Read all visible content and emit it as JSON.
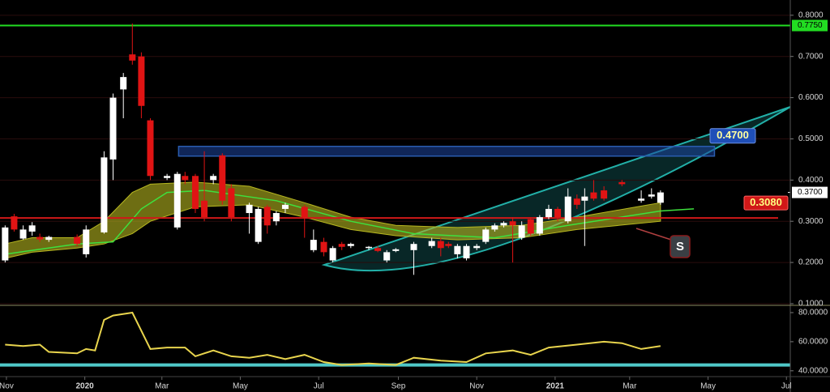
{
  "chart_data": [
    {
      "type": "candlestick",
      "xlim": [
        -5,
        610
      ],
      "ylim": [
        0.096,
        0.837
      ],
      "yticks": [
        {
          "value": 0.1,
          "label": "0.1000"
        },
        {
          "value": 0.2,
          "label": "0.2000"
        },
        {
          "value": 0.3,
          "label": "0.3000"
        },
        {
          "value": 0.4,
          "label": "0.4000"
        },
        {
          "value": 0.5,
          "label": "0.5000"
        },
        {
          "value": 0.6,
          "label": "0.6000"
        },
        {
          "value": 0.7,
          "label": "0.7000"
        },
        {
          "value": 0.8,
          "label": "0.8000"
        }
      ],
      "grid": true,
      "up_color": "#ffffff",
      "down_color": "#e01414",
      "x": [
        -1,
        6,
        13,
        20,
        26,
        33,
        55,
        62,
        76,
        83,
        91,
        98,
        105,
        112,
        125,
        133,
        139,
        147,
        154,
        161,
        168,
        175,
        189,
        196,
        203,
        210,
        217,
        232,
        239,
        247,
        254,
        261,
        268,
        282,
        289,
        296,
        303,
        317,
        331,
        338,
        344,
        351,
        358,
        366,
        373,
        380,
        387,
        394,
        401,
        408,
        415,
        422,
        429,
        437,
        444,
        450,
        457,
        465,
        479,
        494,
        502,
        509
      ],
      "open": [
        0.205,
        0.312,
        0.258,
        0.275,
        0.262,
        0.255,
        0.262,
        0.22,
        0.273,
        0.45,
        0.62,
        0.705,
        0.7,
        0.545,
        0.405,
        0.285,
        0.41,
        0.41,
        0.35,
        0.4,
        0.46,
        0.38,
        0.32,
        0.25,
        0.335,
        0.3,
        0.33,
        0.335,
        0.23,
        0.25,
        0.205,
        0.245,
        0.24,
        0.235,
        0.235,
        0.205,
        0.228,
        0.23,
        0.24,
        0.252,
        0.245,
        0.22,
        0.21,
        0.235,
        0.25,
        0.28,
        0.29,
        0.3,
        0.26,
        0.305,
        0.27,
        0.31,
        0.33,
        0.3,
        0.355,
        0.35,
        0.37,
        0.375,
        0.395,
        0.35,
        0.36,
        0.345
      ],
      "high": [
        0.29,
        0.318,
        0.29,
        0.298,
        0.27,
        0.265,
        0.268,
        0.29,
        0.47,
        0.61,
        0.66,
        0.78,
        0.71,
        0.55,
        0.415,
        0.42,
        0.42,
        0.415,
        0.47,
        0.415,
        0.465,
        0.39,
        0.345,
        0.335,
        0.34,
        0.325,
        0.345,
        0.34,
        0.28,
        0.26,
        0.24,
        0.25,
        0.248,
        0.24,
        0.24,
        0.23,
        0.235,
        0.25,
        0.26,
        0.26,
        0.25,
        0.245,
        0.245,
        0.245,
        0.285,
        0.295,
        0.3,
        0.31,
        0.3,
        0.31,
        0.315,
        0.34,
        0.335,
        0.38,
        0.365,
        0.38,
        0.4,
        0.385,
        0.4,
        0.375,
        0.38,
        0.375
      ],
      "low": [
        0.2,
        0.275,
        0.255,
        0.265,
        0.25,
        0.25,
        0.24,
        0.212,
        0.27,
        0.4,
        0.55,
        0.68,
        0.55,
        0.4,
        0.4,
        0.28,
        0.39,
        0.32,
        0.3,
        0.39,
        0.34,
        0.3,
        0.27,
        0.245,
        0.27,
        0.29,
        0.32,
        0.26,
        0.225,
        0.215,
        0.2,
        0.23,
        0.235,
        0.23,
        0.225,
        0.2,
        0.225,
        0.17,
        0.235,
        0.215,
        0.235,
        0.21,
        0.205,
        0.23,
        0.245,
        0.275,
        0.285,
        0.2,
        0.255,
        0.265,
        0.265,
        0.305,
        0.3,
        0.295,
        0.33,
        0.24,
        0.35,
        0.35,
        0.385,
        0.345,
        0.355,
        0.34
      ],
      "close": [
        0.285,
        0.28,
        0.28,
        0.29,
        0.256,
        0.262,
        0.245,
        0.28,
        0.455,
        0.6,
        0.65,
        0.69,
        0.58,
        0.41,
        0.41,
        0.415,
        0.4,
        0.33,
        0.31,
        0.41,
        0.35,
        0.31,
        0.34,
        0.33,
        0.29,
        0.32,
        0.34,
        0.31,
        0.255,
        0.225,
        0.235,
        0.238,
        0.245,
        0.238,
        0.228,
        0.225,
        0.232,
        0.245,
        0.252,
        0.235,
        0.24,
        0.24,
        0.24,
        0.24,
        0.28,
        0.29,
        0.296,
        0.29,
        0.29,
        0.27,
        0.31,
        0.33,
        0.31,
        0.36,
        0.34,
        0.36,
        0.355,
        0.355,
        0.39,
        0.355,
        0.365,
        0.37
      ],
      "ribbon": {
        "color": "#b8b820",
        "x": [
          -1,
          20,
          55,
          76,
          98,
          112,
          147,
          189,
          232,
          268,
          303,
          351,
          401,
          444,
          509
        ],
        "upper": [
          0.245,
          0.26,
          0.26,
          0.3,
          0.37,
          0.39,
          0.395,
          0.385,
          0.345,
          0.31,
          0.29,
          0.285,
          0.29,
          0.31,
          0.345
        ],
        "lower": [
          0.21,
          0.225,
          0.235,
          0.245,
          0.27,
          0.3,
          0.335,
          0.34,
          0.31,
          0.28,
          0.265,
          0.255,
          0.26,
          0.28,
          0.3
        ]
      },
      "moving_average": {
        "color": "#3ee03e",
        "x": [
          -1,
          55,
          83,
          105,
          125,
          154,
          210,
          268,
          317,
          380,
          437,
          509,
          535
        ],
        "values": [
          0.22,
          0.245,
          0.25,
          0.33,
          0.37,
          0.375,
          0.35,
          0.3,
          0.27,
          0.26,
          0.29,
          0.325,
          0.33
        ]
      },
      "levels": [
        {
          "value": 0.775,
          "label": "0.7750",
          "color": "#22dd22"
        },
        {
          "value": 0.308,
          "label": "0.3080",
          "color": "#d01818"
        }
      ],
      "zone": {
        "value": 0.47,
        "label": "0.4700",
        "x": [
          134,
          551
        ],
        "color": "#2a5db0"
      },
      "last_price": {
        "value": 0.37,
        "label": "0.3700"
      },
      "annotation": "S"
    },
    {
      "type": "line",
      "xlim": [
        -5,
        610
      ],
      "ylim": [
        36,
        85
      ],
      "yticks": [
        {
          "value": 40,
          "label": "40.0000"
        },
        {
          "value": 60,
          "label": "60.0000"
        },
        {
          "value": 80,
          "label": "80.0000"
        }
      ],
      "xticks": [
        {
          "value": 0,
          "label": "Nov"
        },
        {
          "value": 61,
          "label": "2020"
        },
        {
          "value": 121,
          "label": "Mar"
        },
        {
          "value": 182,
          "label": "May"
        },
        {
          "value": 243,
          "label": "Jul"
        },
        {
          "value": 305,
          "label": "Sep"
        },
        {
          "value": 366,
          "label": "Nov"
        },
        {
          "value": 427,
          "label": "2021"
        },
        {
          "value": 485,
          "label": "Mar"
        },
        {
          "value": 546,
          "label": "May"
        },
        {
          "value": 607,
          "label": "Jul"
        }
      ],
      "series": [
        {
          "color": "#e8d44d",
          "x": [
            -1,
            13,
            26,
            33,
            55,
            62,
            69,
            76,
            83,
            98,
            112,
            125,
            139,
            147,
            161,
            175,
            189,
            203,
            217,
            232,
            247,
            261,
            282,
            303,
            317,
            338,
            358,
            373,
            394,
            408,
            422,
            444,
            465,
            479,
            494,
            509
          ],
          "values": [
            58,
            57,
            58,
            53,
            52,
            55,
            54,
            75,
            78,
            80,
            55,
            56,
            56,
            50,
            54,
            50,
            49,
            51,
            48,
            51,
            46,
            44,
            45,
            44,
            49,
            47,
            46,
            52,
            54,
            51,
            56,
            58,
            60,
            59,
            55,
            57
          ]
        }
      ],
      "levels": [
        {
          "value": 44,
          "color": "#4fc8c8"
        }
      ]
    }
  ]
}
